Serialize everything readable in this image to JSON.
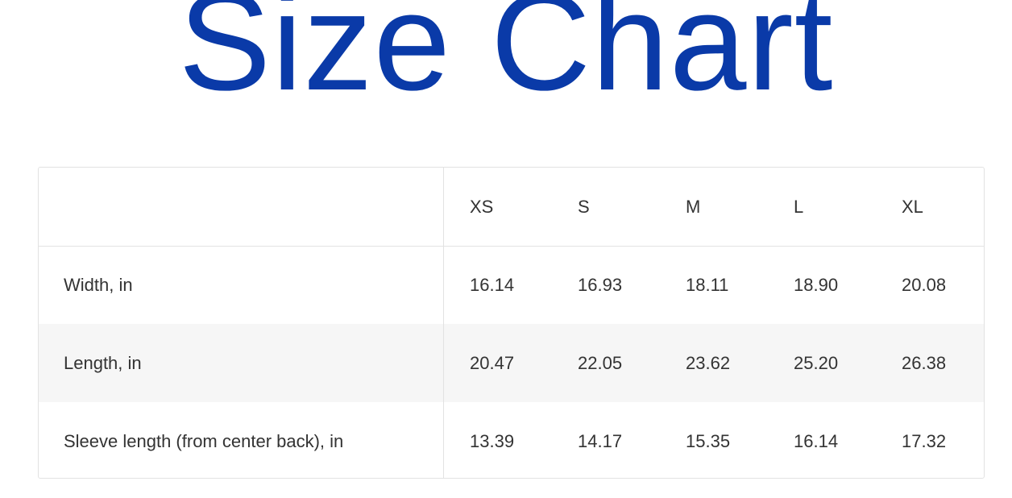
{
  "title": "Size Chart",
  "title_color": "#0a3aa8",
  "table": {
    "sizes": [
      "XS",
      "S",
      "M",
      "L",
      "XL"
    ],
    "rows": [
      {
        "label": "Width, in",
        "values": [
          "16.14",
          "16.93",
          "18.11",
          "18.90",
          "20.08"
        ]
      },
      {
        "label": "Length, in",
        "values": [
          "20.47",
          "22.05",
          "23.62",
          "25.20",
          "26.38"
        ]
      },
      {
        "label": "Sleeve length (from center back), in",
        "values": [
          "13.39",
          "14.17",
          "15.35",
          "16.14",
          "17.32"
        ]
      }
    ]
  }
}
